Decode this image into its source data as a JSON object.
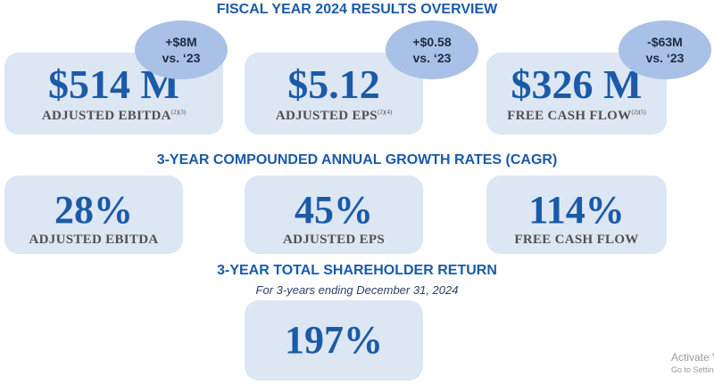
{
  "titles": {
    "overview": "FISCAL YEAR 2024 RESULTS OVERVIEW",
    "cagr": "3-YEAR COMPOUNDED ANNUAL GROWTH RATES (CAGR)",
    "tsr": "3-YEAR TOTAL SHAREHOLDER RETURN",
    "tsr_subtitle": "For 3-years ending December 31, 2024"
  },
  "overview": [
    {
      "value": "$514 M",
      "label": "ADJUSTED EBITDA",
      "footnote": "(2)(3)",
      "change": "+$8M",
      "vs": "vs. ‘23"
    },
    {
      "value": "$5.12",
      "label": "ADJUSTED EPS",
      "footnote": "(2)(4)",
      "change": "+$0.58",
      "vs": "vs. ‘23"
    },
    {
      "value": "$326 M",
      "label": "FREE CASH FLOW",
      "footnote": "(2)(5)",
      "change": "-$63M",
      "vs": "vs. ‘23"
    }
  ],
  "cagr": [
    {
      "value": "28%",
      "label": "ADJUSTED EBITDA"
    },
    {
      "value": "45%",
      "label": "ADJUSTED EPS"
    },
    {
      "value": "114%",
      "label": "FREE CASH FLOW"
    }
  ],
  "tsr": {
    "value": "197%"
  },
  "watermark": {
    "line1": "Activate V",
    "line2": "Go to Setting"
  },
  "colors": {
    "accent": "#1a5aa8",
    "card": "#dde6f3",
    "bubble": "#a9c1e6",
    "label": "#505050"
  }
}
